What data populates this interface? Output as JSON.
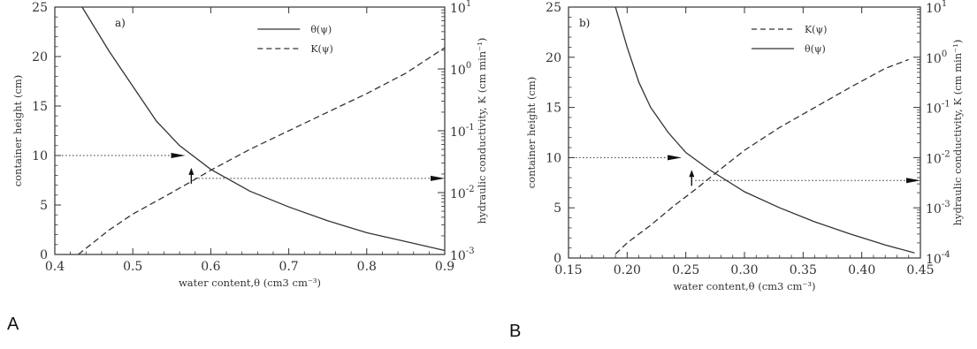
{
  "captions": [
    "A",
    "B"
  ],
  "chart_data": [
    {
      "type": "line",
      "panel_label": "a)",
      "xlabel": "water content,θ (cm3 cm⁻³)",
      "ylabel_left": "container height (cm)",
      "ylabel_right": "hydraulic conductivity, K (cm min⁻¹)",
      "xlim": [
        0.4,
        0.9
      ],
      "ylim_left": [
        0,
        25
      ],
      "ylim_right_log10": [
        -3,
        1
      ],
      "x_ticks": [
        "0.4",
        "0.5",
        "0.6",
        "0.7",
        "0.8",
        "0.9"
      ],
      "y_left_ticks": [
        "0",
        "5",
        "10",
        "15",
        "20",
        "25"
      ],
      "y_right_ticks": [
        {
          "base": "10",
          "exp": "1"
        },
        {
          "base": "10",
          "exp": "0"
        },
        {
          "base": "10",
          "exp": "-1"
        },
        {
          "base": "10",
          "exp": "-2"
        },
        {
          "base": "10",
          "exp": "-3"
        }
      ],
      "legend": [
        {
          "label": "θ(ψ)",
          "style": "solid"
        },
        {
          "label": "K(ψ)",
          "style": "dashed"
        }
      ],
      "legend_position": "top-right",
      "series": [
        {
          "name": "θ(ψ)",
          "axis": "left",
          "style": "solid",
          "points": [
            [
              0.435,
              25
            ],
            [
              0.47,
              20.5
            ],
            [
              0.5,
              17
            ],
            [
              0.53,
              13.5
            ],
            [
              0.56,
              11
            ],
            [
              0.6,
              8.6
            ],
            [
              0.65,
              6.4
            ],
            [
              0.7,
              4.8
            ],
            [
              0.75,
              3.4
            ],
            [
              0.8,
              2.2
            ],
            [
              0.85,
              1.3
            ],
            [
              0.9,
              0.4
            ]
          ]
        },
        {
          "name": "K(ψ)",
          "axis": "right",
          "style": "dashed",
          "points": [
            [
              0.43,
              0.001
            ],
            [
              0.47,
              0.0025
            ],
            [
              0.5,
              0.0045
            ],
            [
              0.55,
              0.01
            ],
            [
              0.6,
              0.023
            ],
            [
              0.65,
              0.05
            ],
            [
              0.7,
              0.1
            ],
            [
              0.75,
              0.2
            ],
            [
              0.8,
              0.4
            ],
            [
              0.85,
              0.85
            ],
            [
              0.9,
              2.2
            ]
          ]
        }
      ],
      "annotations": {
        "height_level": 10,
        "K_level": 0.017,
        "theta_at_height": 0.565,
        "theta_at_K": 0.575
      }
    },
    {
      "type": "line",
      "panel_label": "b)",
      "xlabel": "water content,θ (cm3 cm⁻³)",
      "ylabel_left": "container height (cm)",
      "ylabel_right": "hydraulic conductivity, K (cm min⁻¹)",
      "xlim": [
        0.15,
        0.45
      ],
      "ylim_left": [
        0,
        25
      ],
      "ylim_right_log10": [
        -4,
        1
      ],
      "x_ticks": [
        "0.15",
        "0.20",
        "0.25",
        "0.30",
        "0.35",
        "0.40",
        "0.45"
      ],
      "y_left_ticks": [
        "0",
        "5",
        "10",
        "15",
        "20",
        "25"
      ],
      "y_right_ticks": [
        {
          "base": "10",
          "exp": "1"
        },
        {
          "base": "10",
          "exp": "0"
        },
        {
          "base": "10",
          "exp": "-1"
        },
        {
          "base": "10",
          "exp": "-2"
        },
        {
          "base": "10",
          "exp": "-3"
        },
        {
          "base": "10",
          "exp": "-4"
        }
      ],
      "legend": [
        {
          "label": "K(ψ)",
          "style": "dashed"
        },
        {
          "label": "θ(ψ)",
          "style": "solid"
        }
      ],
      "legend_position": "top-right",
      "series": [
        {
          "name": "θ(ψ)",
          "axis": "left",
          "style": "solid",
          "points": [
            [
              0.19,
              25
            ],
            [
              0.2,
              21
            ],
            [
              0.21,
              17.5
            ],
            [
              0.22,
              15
            ],
            [
              0.235,
              12.5
            ],
            [
              0.25,
              10.5
            ],
            [
              0.27,
              8.8
            ],
            [
              0.3,
              6.6
            ],
            [
              0.33,
              5
            ],
            [
              0.36,
              3.6
            ],
            [
              0.39,
              2.4
            ],
            [
              0.42,
              1.3
            ],
            [
              0.445,
              0.5
            ]
          ]
        },
        {
          "name": "K(ψ)",
          "axis": "right",
          "style": "dashed",
          "points": [
            [
              0.19,
              0.00012
            ],
            [
              0.2,
              0.0002
            ],
            [
              0.22,
              0.00045
            ],
            [
              0.24,
              0.0011
            ],
            [
              0.26,
              0.0025
            ],
            [
              0.28,
              0.006
            ],
            [
              0.3,
              0.014
            ],
            [
              0.33,
              0.04
            ],
            [
              0.36,
              0.1
            ],
            [
              0.39,
              0.25
            ],
            [
              0.42,
              0.6
            ],
            [
              0.44,
              0.9
            ]
          ]
        }
      ],
      "annotations": {
        "height_level": 10,
        "K_level": 0.0035,
        "theta_at_height": 0.245,
        "theta_at_K": 0.255
      }
    }
  ]
}
